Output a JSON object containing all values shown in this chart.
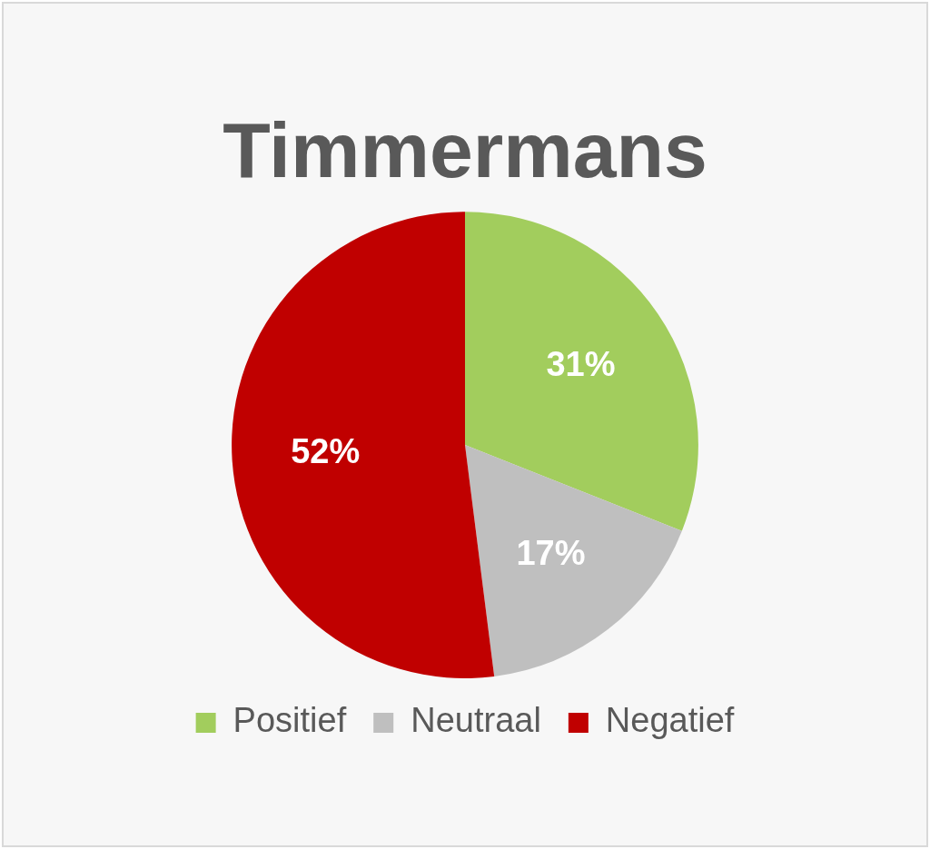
{
  "chart_data": {
    "type": "pie",
    "title": "Timmermans",
    "categories": [
      "Positief",
      "Neutraal",
      "Negatief"
    ],
    "values": [
      31,
      17,
      52
    ],
    "colors": [
      "#a2cd5d",
      "#bfbfbf",
      "#c00000"
    ],
    "value_labels": [
      "31%",
      "17%",
      "52%"
    ],
    "legend": "bottom"
  }
}
